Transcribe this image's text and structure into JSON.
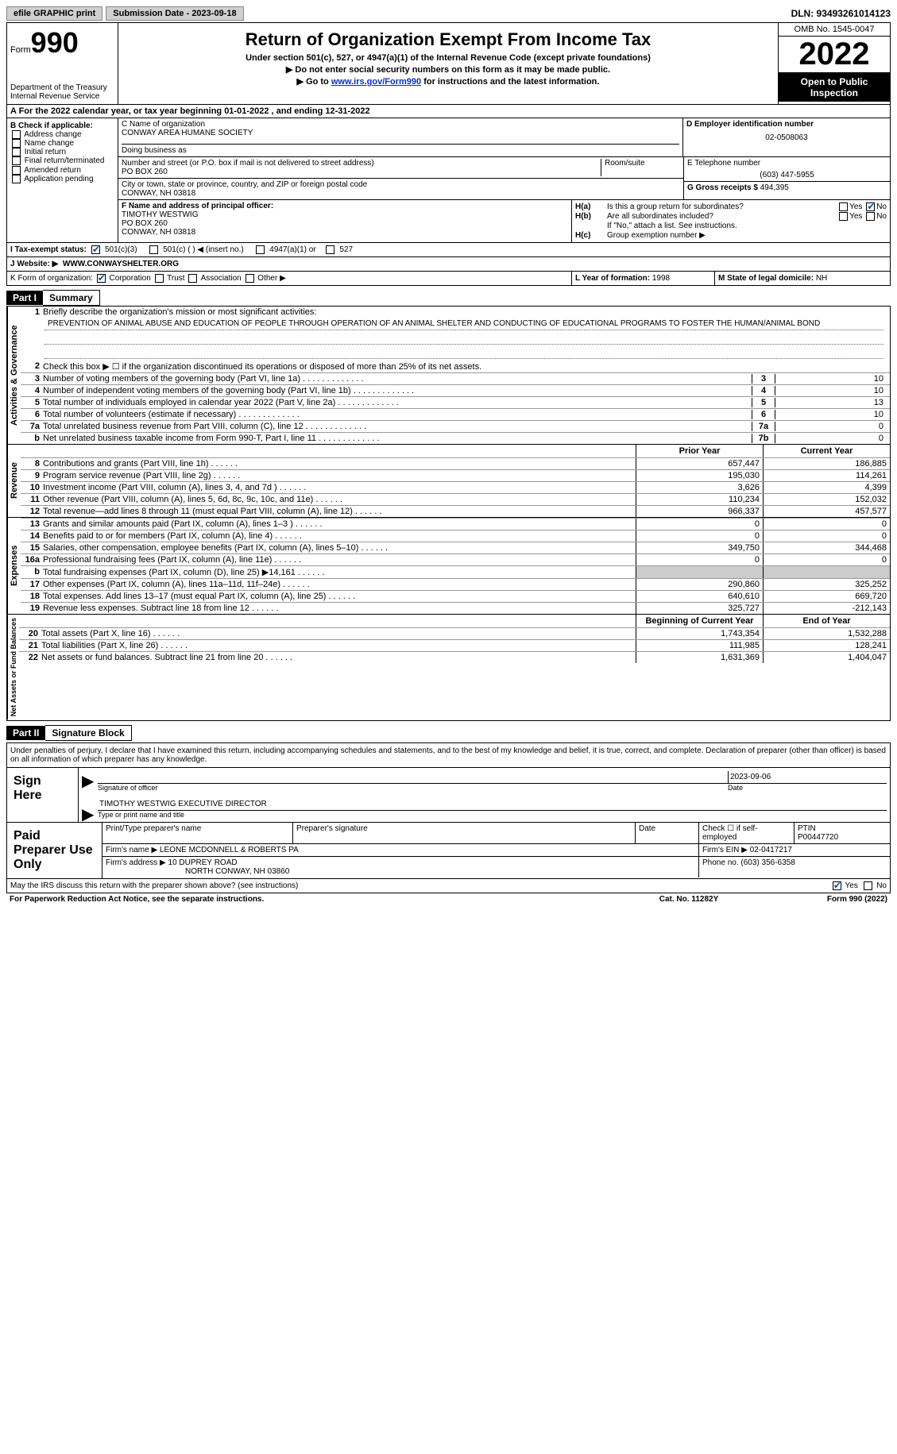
{
  "topbar": {
    "efile": "efile GRAPHIC print",
    "sub_date_label": "Submission Date - 2023-09-18",
    "dln": "DLN: 93493261014123"
  },
  "header": {
    "form_label": "Form",
    "form_num": "990",
    "dept": "Department of the Treasury\nInternal Revenue Service",
    "title": "Return of Organization Exempt From Income Tax",
    "sub1": "Under section 501(c), 527, or 4947(a)(1) of the Internal Revenue Code (except private foundations)",
    "sub2": "▶ Do not enter social security numbers on this form as it may be made public.",
    "sub3_pre": "▶ Go to ",
    "sub3_link": "www.irs.gov/Form990",
    "sub3_post": " for instructions and the latest information.",
    "omb": "OMB No. 1545-0047",
    "year": "2022",
    "open": "Open to Public Inspection"
  },
  "row_a": "A For the 2022 calendar year, or tax year beginning 01-01-2022    , and ending 12-31-2022",
  "box_b": {
    "label": "B Check if applicable:",
    "items": [
      "Address change",
      "Name change",
      "Initial return",
      "Final return/terminated",
      "Amended return",
      "Application pending"
    ]
  },
  "box_c": {
    "name_label": "C Name of organization",
    "name": "CONWAY AREA HUMANE SOCIETY",
    "dba_label": "Doing business as",
    "dba": "",
    "street_label": "Number and street (or P.O. box if mail is not delivered to street address)",
    "street": "PO BOX 260",
    "room_label": "Room/suite",
    "city_label": "City or town, state or province, country, and ZIP or foreign postal code",
    "city": "CONWAY, NH  03818"
  },
  "box_d": {
    "label": "D Employer identification number",
    "ein": "02-0508063"
  },
  "box_e": {
    "label": "E Telephone number",
    "tel": "(603) 447-5955"
  },
  "box_g": {
    "label": "G Gross receipts $",
    "val": "494,395"
  },
  "box_f": {
    "label": "F  Name and address of principal officer:",
    "name": "TIMOTHY WESTWIG",
    "addr1": "PO BOX 260",
    "addr2": "CONWAY, NH   03818"
  },
  "box_h": {
    "a_label": "H(a)",
    "a_text": "Is this a group return for subordinates?",
    "a_yes": "Yes",
    "a_no": "No",
    "b_label": "H(b)",
    "b_text": "Are all subordinates included?",
    "b_note": "If \"No,\" attach a list. See instructions.",
    "c_label": "H(c)",
    "c_text": "Group exemption number ▶"
  },
  "box_i": {
    "label": "I    Tax-exempt status:",
    "o1": "501(c)(3)",
    "o2": "501(c) (  ) ◀ (insert no.)",
    "o3": "4947(a)(1) or",
    "o4": "527"
  },
  "box_j": {
    "label": "J   Website: ▶",
    "val": "WWW.CONWAYSHELTER.ORG"
  },
  "box_k": {
    "label": "K Form of organization:",
    "o1": "Corporation",
    "o2": "Trust",
    "o3": "Association",
    "o4": "Other ▶"
  },
  "box_l": {
    "label": "L Year of formation:",
    "val": "1998"
  },
  "box_m": {
    "label": "M State of legal domicile:",
    "val": "NH"
  },
  "part1": {
    "hdr": "Part I",
    "title": "Summary",
    "l1_label": "Briefly describe the organization's mission or most significant activities:",
    "mission": "PREVENTION OF ANIMAL ABUSE AND EDUCATION OF PEOPLE THROUGH OPERATION OF AN ANIMAL SHELTER AND CONDUCTING OF EDUCATIONAL PROGRAMS TO FOSTER THE HUMAN/ANIMAL BOND",
    "l2": "Check this box ▶ ☐  if the organization discontinued its operations or disposed of more than 25% of its net assets.",
    "vert1": "Activities & Governance",
    "vert2": "Revenue",
    "vert3": "Expenses",
    "vert4": "Net Assets or Fund Balances",
    "lines_ag": [
      {
        "n": "3",
        "t": "Number of voting members of the governing body (Part VI, line 1a)",
        "b": "3",
        "v": "10"
      },
      {
        "n": "4",
        "t": "Number of independent voting members of the governing body (Part VI, line 1b)",
        "b": "4",
        "v": "10"
      },
      {
        "n": "5",
        "t": "Total number of individuals employed in calendar year 2022 (Part V, line 2a)",
        "b": "5",
        "v": "13"
      },
      {
        "n": "6",
        "t": "Total number of volunteers (estimate if necessary)",
        "b": "6",
        "v": "10"
      },
      {
        "n": "7a",
        "t": "Total unrelated business revenue from Part VIII, column (C), line 12",
        "b": "7a",
        "v": "0"
      },
      {
        "n": "b",
        "t": "Net unrelated business taxable income from Form 990-T, Part I, line 11",
        "b": "7b",
        "v": "0"
      }
    ],
    "col_prior": "Prior Year",
    "col_curr": "Current Year",
    "rev": [
      {
        "n": "8",
        "t": "Contributions and grants (Part VIII, line 1h)",
        "p": "657,447",
        "c": "186,885"
      },
      {
        "n": "9",
        "t": "Program service revenue (Part VIII, line 2g)",
        "p": "195,030",
        "c": "114,261"
      },
      {
        "n": "10",
        "t": "Investment income (Part VIII, column (A), lines 3, 4, and 7d )",
        "p": "3,626",
        "c": "4,399"
      },
      {
        "n": "11",
        "t": "Other revenue (Part VIII, column (A), lines 5, 6d, 8c, 9c, 10c, and 11e)",
        "p": "110,234",
        "c": "152,032"
      },
      {
        "n": "12",
        "t": "Total revenue—add lines 8 through 11 (must equal Part VIII, column (A), line 12)",
        "p": "966,337",
        "c": "457,577"
      }
    ],
    "exp": [
      {
        "n": "13",
        "t": "Grants and similar amounts paid (Part IX, column (A), lines 1–3 )",
        "p": "0",
        "c": "0"
      },
      {
        "n": "14",
        "t": "Benefits paid to or for members (Part IX, column (A), line 4)",
        "p": "0",
        "c": "0"
      },
      {
        "n": "15",
        "t": "Salaries, other compensation, employee benefits (Part IX, column (A), lines 5–10)",
        "p": "349,750",
        "c": "344,468"
      },
      {
        "n": "16a",
        "t": "Professional fundraising fees (Part IX, column (A), line 11e)",
        "p": "0",
        "c": "0"
      },
      {
        "n": "b",
        "t": "Total fundraising expenses (Part IX, column (D), line 25) ▶14,161",
        "p": "",
        "c": "",
        "gray": true
      },
      {
        "n": "17",
        "t": "Other expenses (Part IX, column (A), lines 11a–11d, 11f–24e)",
        "p": "290,860",
        "c": "325,252"
      },
      {
        "n": "18",
        "t": "Total expenses. Add lines 13–17 (must equal Part IX, column (A), line 25)",
        "p": "640,610",
        "c": "669,720"
      },
      {
        "n": "19",
        "t": "Revenue less expenses. Subtract line 18 from line 12",
        "p": "325,727",
        "c": "-212,143"
      }
    ],
    "col_begin": "Beginning of Current Year",
    "col_end": "End of Year",
    "net": [
      {
        "n": "20",
        "t": "Total assets (Part X, line 16)",
        "p": "1,743,354",
        "c": "1,532,288"
      },
      {
        "n": "21",
        "t": "Total liabilities (Part X, line 26)",
        "p": "111,985",
        "c": "128,241"
      },
      {
        "n": "22",
        "t": "Net assets or fund balances. Subtract line 21 from line 20",
        "p": "1,631,369",
        "c": "1,404,047"
      }
    ]
  },
  "part2": {
    "hdr": "Part II",
    "title": "Signature Block",
    "decl": "Under penalties of perjury, I declare that I have examined this return, including accompanying schedules and statements, and to the best of my knowledge and belief, it is true, correct, and complete. Declaration of preparer (other than officer) is based on all information of which preparer has any knowledge.",
    "sign_here": "Sign Here",
    "sig_of": "Signature of officer",
    "sig_date_label": "Date",
    "sig_date": "2023-09-06",
    "sig_name": "TIMOTHY WESTWIG  EXECUTIVE DIRECTOR",
    "sig_name_label": "Type or print name and title",
    "paid": "Paid Preparer Use Only",
    "prep_name_l": "Print/Type preparer's name",
    "prep_sig_l": "Preparer's signature",
    "prep_date_l": "Date",
    "prep_check": "Check ☐ if self-employed",
    "ptin_l": "PTIN",
    "ptin": "P00447720",
    "firm_name_l": "Firm's name    ▶",
    "firm_name": "LEONE MCDONNELL & ROBERTS PA",
    "firm_ein_l": "Firm's EIN ▶",
    "firm_ein": "02-0417217",
    "firm_addr_l": "Firm's address ▶",
    "firm_addr1": "10 DUPREY ROAD",
    "firm_addr2": "NORTH CONWAY, NH   03860",
    "firm_phone_l": "Phone no.",
    "firm_phone": "(603) 356-6358",
    "may": "May the IRS discuss this return with the preparer shown above? (see instructions)",
    "may_yes": "Yes",
    "may_no": "No"
  },
  "footer": {
    "l": "For Paperwork Reduction Act Notice, see the separate instructions.",
    "m": "Cat. No. 11282Y",
    "r": "Form 990 (2022)"
  }
}
